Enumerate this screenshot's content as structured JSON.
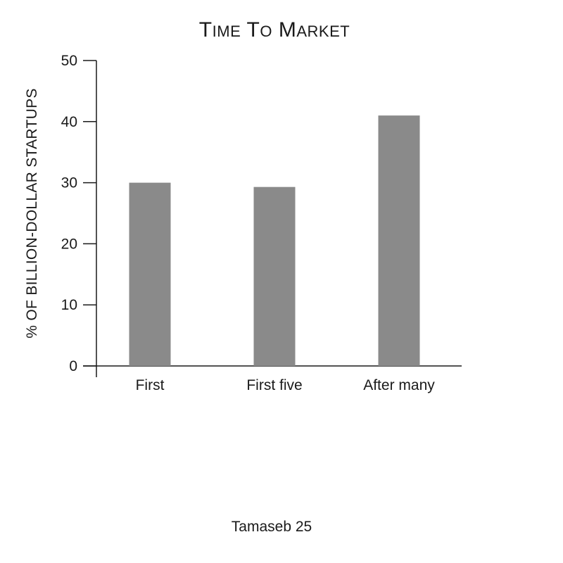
{
  "chart_data": {
    "type": "bar",
    "title": "Time to Market",
    "xlabel": "",
    "ylabel": "% of Billion-Dollar Startups",
    "categories": [
      "First",
      "First five",
      "After many"
    ],
    "values": [
      30,
      29.3,
      41
    ],
    "ylim": [
      0,
      50
    ],
    "yticks": [
      "0",
      "10",
      "20",
      "30",
      "40",
      "50"
    ],
    "grid": false,
    "legend": "none",
    "bar_color": "#8a8a8a",
    "source": "Tamaseb 25"
  }
}
